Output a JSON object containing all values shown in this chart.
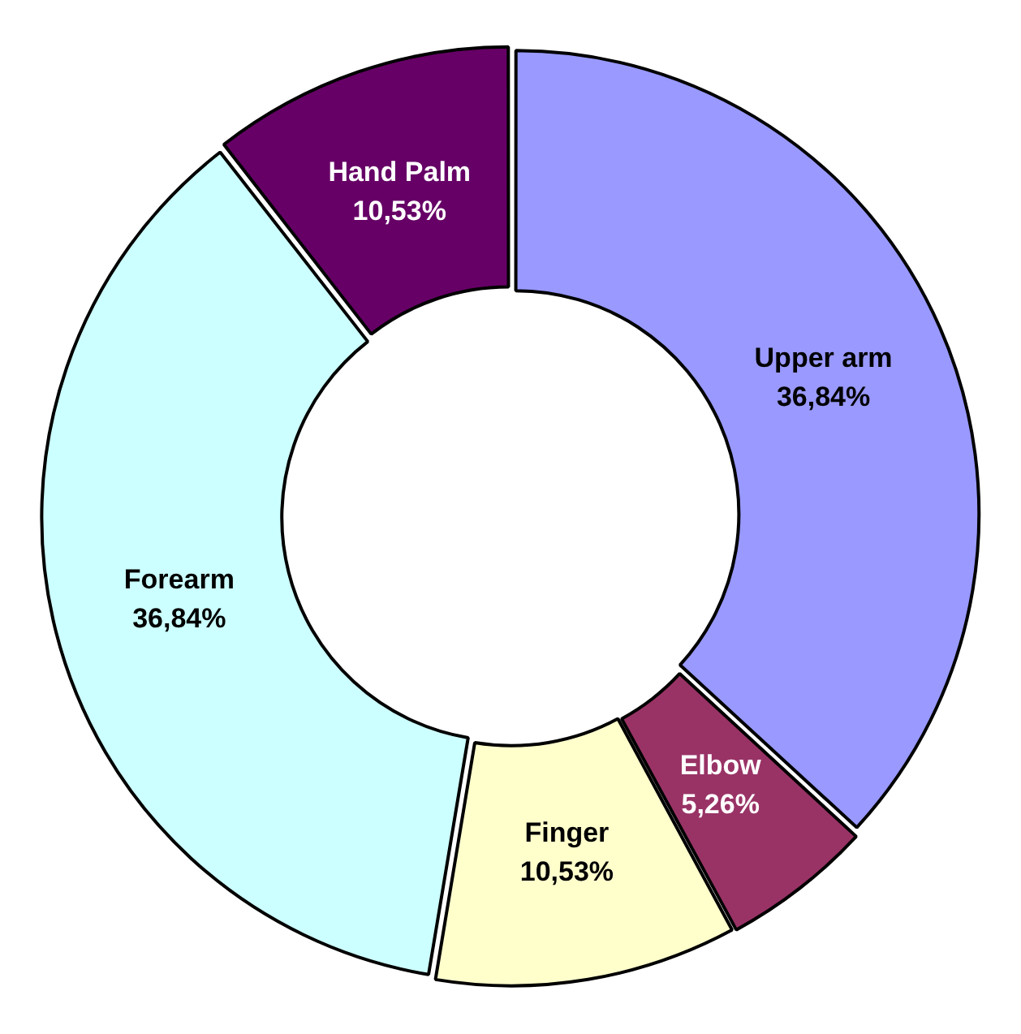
{
  "chart_data": {
    "type": "donut",
    "categories": [
      "Upper arm",
      "Elbow",
      "Finger",
      "Forearm",
      "Hand Palm"
    ],
    "values": [
      36.84,
      5.26,
      10.53,
      36.84,
      10.53
    ],
    "colors": [
      "#9999ff",
      "#993366",
      "#ffffcc",
      "#ccffff",
      "#660066"
    ],
    "value_labels": [
      "36,84%",
      "5,26%",
      "10,53%",
      "36,84%",
      "10,53%"
    ]
  }
}
